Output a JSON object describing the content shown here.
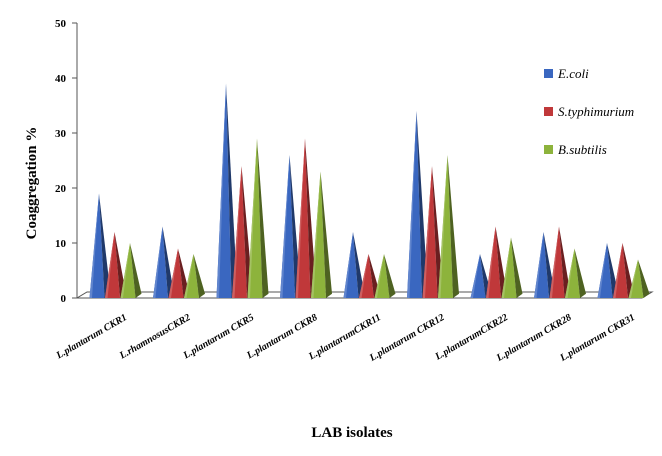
{
  "chart_data": {
    "type": "bar",
    "style": "3d-pyramid",
    "title": "",
    "xlabel": "LAB isolates",
    "ylabel": "Coaggregation %",
    "ylim": [
      0,
      50
    ],
    "yticks": [
      0,
      10,
      20,
      30,
      40,
      50
    ],
    "grid": false,
    "legend_position": "right",
    "categories": [
      "L.plantarum CKR1",
      "L.rhamnosusCKR2",
      "L.plantarum CKR5",
      "L.plantarum CKR8",
      "L.plantarumCKR11",
      "L.plantarum CKR12",
      "L.plantarumCKR22",
      "L.plantarum CKR28",
      "L.plantarum CKR31"
    ],
    "series": [
      {
        "name": "E.coli",
        "color": "#3A67C0",
        "values": [
          19,
          13,
          39,
          26,
          12,
          34,
          8,
          12,
          10
        ]
      },
      {
        "name": "S.typhimurium",
        "color": "#C0383A",
        "values": [
          12,
          9,
          24,
          29,
          8,
          24,
          13,
          13,
          10
        ]
      },
      {
        "name": "B.subtilis",
        "color": "#8DB33C",
        "values": [
          10,
          8,
          29,
          23,
          8,
          26,
          11,
          9,
          7
        ]
      }
    ]
  }
}
